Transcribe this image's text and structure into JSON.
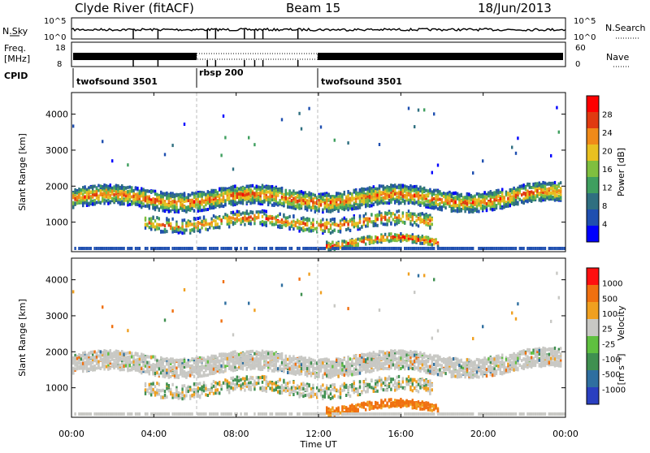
{
  "header": {
    "station": "Clyde River (fitACF)",
    "beam": "Beam 15",
    "date": "18/Jun/2013"
  },
  "top_panels": {
    "nsky_label": "N.Sky",
    "nsky_ticks": [
      "10^5",
      "10^0"
    ],
    "nsearch_label": "N.Search",
    "nsearch_ticks": [
      "10^5",
      "10^0"
    ],
    "freq_label": "Freq.",
    "freq_unit": "[MHz]",
    "freq_ticks": [
      "18",
      "8"
    ],
    "nave_label": "Nave",
    "nave_ticks": [
      "60",
      "0"
    ],
    "cpid_label": "CPID",
    "cpid_segments": [
      {
        "name": "twofsound 3501",
        "start_h": 0,
        "end_h": 6
      },
      {
        "name": "rbsp 200",
        "start_h": 6,
        "end_h": 12
      },
      {
        "name": "twofsound 3501",
        "start_h": 12,
        "end_h": 24
      }
    ]
  },
  "chart_data": [
    {
      "type": "heatmap",
      "panel": "power",
      "ylabel": "Slant Range [km]",
      "y_ticks": [
        "1000",
        "2000",
        "3000",
        "4000"
      ],
      "ylim_km": [
        180,
        4600
      ],
      "colorbar_label": "Power [dB]",
      "colorbar_ticks": [
        "28",
        "24",
        "20",
        "16",
        "12",
        "8",
        "4"
      ],
      "colorbar_colors": [
        "#0000ff",
        "#1f4fb0",
        "#2f6f80",
        "#3f9f5f",
        "#7fbf3f",
        "#e8c020",
        "#f08a18",
        "#e03a10",
        "#ff0000"
      ],
      "bands": [
        {
          "name": "main",
          "center_km": 1700,
          "spread_km": 260,
          "start_h": 0,
          "end_h": 23.8
        },
        {
          "name": "lower",
          "center_km": 1050,
          "spread_km": 200,
          "start_h": 3.5,
          "end_h": 17.5
        },
        {
          "name": "near",
          "center_km": 500,
          "spread_km": 110,
          "start_h": 12.3,
          "end_h": 17.8
        }
      ]
    },
    {
      "type": "heatmap",
      "panel": "velocity",
      "ylabel": "Slant Range [km]",
      "y_ticks": [
        "1000",
        "2000",
        "3000",
        "4000"
      ],
      "ylim_km": [
        180,
        4600
      ],
      "colorbar_label": "Velocity",
      "colorbar_unit": "[m s⁻¹]",
      "colorbar_ticks": [
        "1000",
        "500",
        "100",
        "25",
        "-25",
        "-100",
        "-500",
        "-1000"
      ],
      "colorbar_colors": [
        "#2a3fc0",
        "#2f6fa0",
        "#3f9050",
        "#5fc040",
        "#c8c8c4",
        "#f0a020",
        "#f07010",
        "#ff1010"
      ]
    }
  ],
  "x_axis": {
    "label": "Time UT",
    "ticks": [
      "00:00",
      "04:00",
      "08:00",
      "12:00",
      "16:00",
      "20:00",
      "00:00"
    ]
  }
}
